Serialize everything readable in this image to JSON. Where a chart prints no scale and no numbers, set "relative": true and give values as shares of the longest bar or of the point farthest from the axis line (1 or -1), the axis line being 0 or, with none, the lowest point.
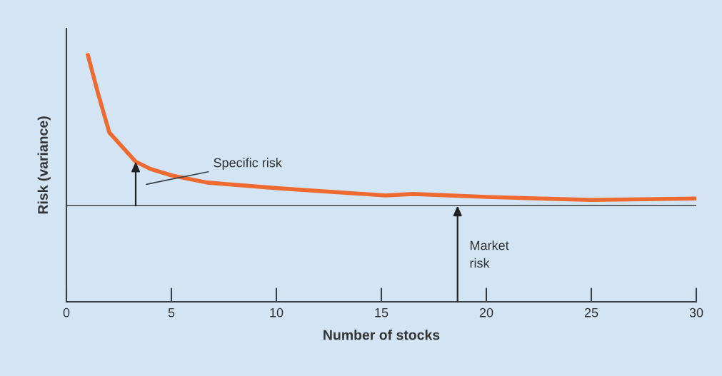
{
  "chart_data": {
    "type": "line",
    "relative": true,
    "xlabel": "Number of stocks",
    "ylabel": "Risk (variance)",
    "x": [
      1,
      1.5,
      2.04,
      3.3,
      4,
      5,
      6.7,
      10.1,
      15.2,
      16.5,
      20,
      25,
      30
    ],
    "series": [
      {
        "color": "#ee6a30",
        "values": [
          1.0,
          0.841,
          0.682,
          0.564,
          0.535,
          0.509,
          0.48,
          0.457,
          0.428,
          0.434,
          0.422,
          0.41,
          0.416
        ]
      }
    ],
    "xlim": [
      0,
      30
    ],
    "xticks": [
      0,
      5,
      10,
      15,
      20,
      25,
      30
    ],
    "ref_lines": [
      {
        "axis": "y",
        "value": 0.387,
        "color": "#3a3f45"
      }
    ],
    "annotations": [
      "Specific risk",
      "Market\nrisk"
    ],
    "grid": false,
    "legend": false,
    "marker": "none",
    "line_style": "solid"
  }
}
